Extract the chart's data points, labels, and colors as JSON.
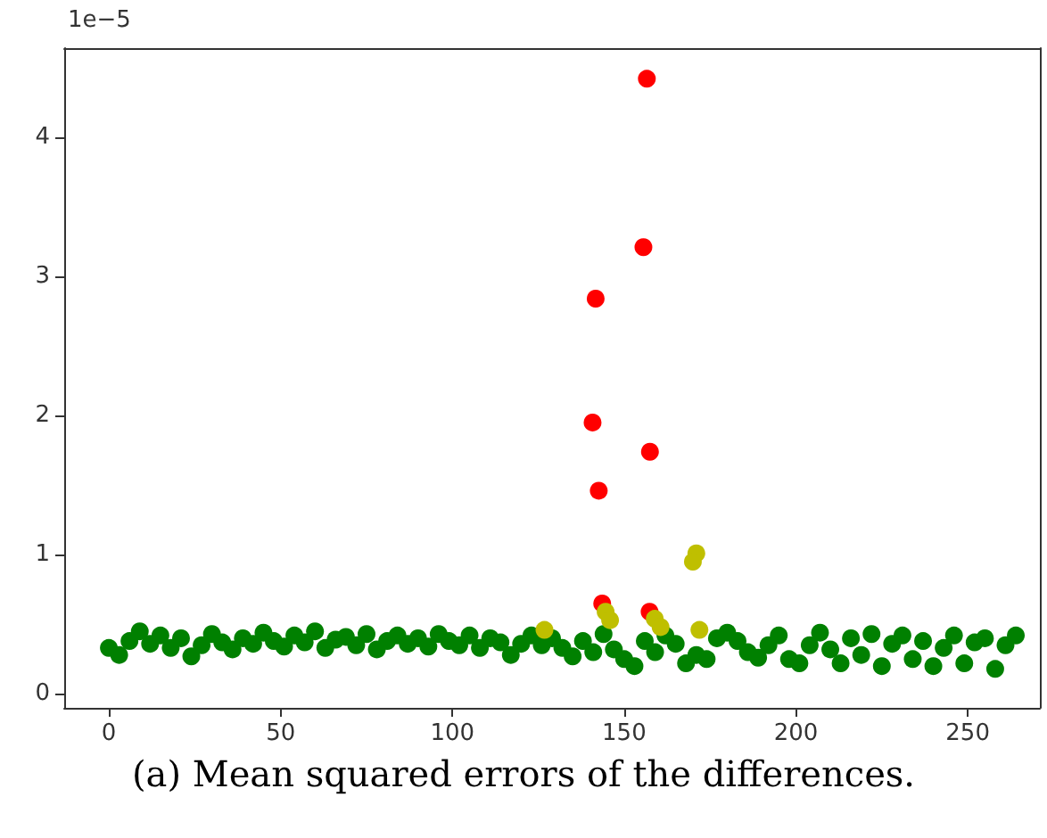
{
  "chart_data": {
    "type": "scatter",
    "annotations": [
      "1e−5",
      "(a) Mean squared errors of the differences."
    ],
    "xlim": [
      -13,
      271
    ],
    "xticks": [
      0,
      50,
      100,
      150,
      200,
      250
    ],
    "ylim": [
      -0.1,
      4.64
    ],
    "yticks": [
      0,
      1,
      2,
      3,
      4
    ],
    "grid": false,
    "marker": "circle",
    "series": [
      {
        "color": "#008000",
        "x": [
          0,
          3,
          6,
          9,
          12,
          15,
          18,
          21,
          24,
          27,
          30,
          33,
          36,
          39,
          42,
          45,
          48,
          51,
          54,
          57,
          60,
          63,
          66,
          69,
          72,
          75,
          78,
          81,
          84,
          87,
          90,
          93,
          96,
          99,
          102,
          105,
          108,
          111,
          114,
          117,
          120,
          123,
          126,
          129,
          132,
          135,
          138,
          141,
          144,
          147,
          150,
          153,
          156,
          159,
          162,
          165,
          168,
          171,
          174,
          177,
          180,
          183,
          186,
          189,
          192,
          195,
          198,
          201,
          204,
          207,
          210,
          213,
          216,
          219,
          222,
          225,
          228,
          231,
          234,
          237,
          240,
          243,
          246,
          249,
          252,
          255,
          258,
          261,
          264
        ],
        "values": [
          0.33,
          0.28,
          0.38,
          0.45,
          0.36,
          0.42,
          0.33,
          0.4,
          0.27,
          0.35,
          0.43,
          0.37,
          0.32,
          0.4,
          0.36,
          0.44,
          0.38,
          0.34,
          0.42,
          0.37,
          0.45,
          0.33,
          0.39,
          0.41,
          0.35,
          0.43,
          0.32,
          0.38,
          0.42,
          0.36,
          0.4,
          0.34,
          0.43,
          0.38,
          0.35,
          0.42,
          0.33,
          0.4,
          0.37,
          0.28,
          0.36,
          0.42,
          0.35,
          0.4,
          0.33,
          0.27,
          0.38,
          0.3,
          0.43,
          0.32,
          0.25,
          0.2,
          0.38,
          0.3,
          0.42,
          0.36,
          0.22,
          0.28,
          0.25,
          0.4,
          0.44,
          0.38,
          0.3,
          0.26,
          0.35,
          0.42,
          0.25,
          0.22,
          0.35,
          0.44,
          0.32,
          0.22,
          0.4,
          0.28,
          0.43,
          0.2,
          0.36,
          0.42,
          0.25,
          0.38,
          0.2,
          0.33,
          0.42,
          0.22,
          0.37,
          0.4,
          0.18,
          0.35,
          0.42
        ]
      },
      {
        "color": "#ff0000",
        "x": [
          156.6,
          155.6,
          141.7,
          140.8,
          157.5,
          142.6,
          143.6,
          157.4
        ],
        "values": [
          4.42,
          3.21,
          2.84,
          1.95,
          1.74,
          1.46,
          0.65,
          0.59
        ]
      },
      {
        "color": "#bfbf00",
        "x": [
          171,
          170,
          144.6,
          145.9,
          158.9,
          160.6,
          126.8,
          171.9
        ],
        "values": [
          1.01,
          0.95,
          0.59,
          0.53,
          0.54,
          0.48,
          0.46,
          0.46
        ]
      }
    ]
  }
}
